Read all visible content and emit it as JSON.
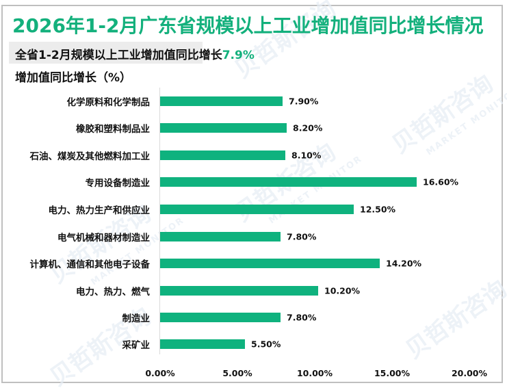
{
  "header": {
    "title": "2026年1-2月广东省规模以上工业增加值同比增长情况",
    "subtitle_prefix": "全省1-2月规模以上工业增加值同比增长",
    "subtitle_value": "7.9%",
    "y_axis_label": "增加值同比增长（%）"
  },
  "watermark": {
    "cn": "贝哲斯咨询",
    "en": "MARKET MONITOR"
  },
  "colors": {
    "title": "#13b07c",
    "bar": "#0fb27e",
    "highlight": "#13b07c"
  },
  "chart_data": {
    "type": "bar",
    "orientation": "horizontal",
    "title": "2026年1-2月广东省规模以上工业增加值同比增长情况",
    "subtitle": "全省1-2月规模以上工业增加值同比增长7.9%",
    "ylabel": "增加值同比增长（%）",
    "xlabel": "",
    "categories": [
      "化学原料和化学制品",
      "橡胶和塑料制品业",
      "石油、煤炭及其他燃料加工业",
      "专用设备制造业",
      "电力、热力生产和供应业",
      "电气机械和器材制造业",
      "计算机、通信和其他电子设备",
      "电力、热力、燃气",
      "制造业",
      "采矿业"
    ],
    "values": [
      7.9,
      8.2,
      8.1,
      16.6,
      12.5,
      7.8,
      14.2,
      10.2,
      7.8,
      5.5
    ],
    "value_labels": [
      "7.90%",
      "8.20%",
      "8.10%",
      "16.60%",
      "12.50%",
      "7.80%",
      "14.20%",
      "10.20%",
      "7.80%",
      "5.50%"
    ],
    "xlim": [
      0,
      20
    ],
    "x_ticks": [
      "0.00%",
      "5.00%",
      "10.00%",
      "15.00%",
      "20.00%"
    ],
    "grid": false,
    "legend": "none"
  }
}
